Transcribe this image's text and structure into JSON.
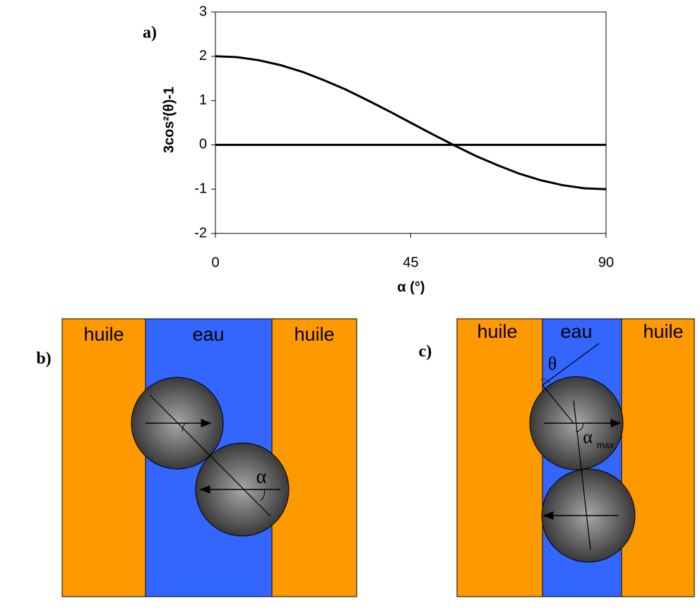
{
  "chart_data": {
    "type": "line",
    "title": "a)",
    "y_label": "3cos²(θ)-1",
    "x_label": "α (°)",
    "x": [
      0,
      5,
      10,
      15,
      20,
      25,
      30,
      35,
      40,
      45,
      50,
      55,
      60,
      65,
      70,
      75,
      80,
      85,
      90
    ],
    "values": [
      2,
      1.98,
      1.91,
      1.8,
      1.65,
      1.46,
      1.25,
      1.01,
      0.76,
      0.5,
      0.24,
      -0.01,
      -0.25,
      -0.46,
      -0.65,
      -0.8,
      -0.91,
      -0.98,
      -1
    ],
    "color": "#000000",
    "xlim": [
      0,
      90
    ],
    "xticks": [
      0,
      45,
      90
    ],
    "ylim": [
      -2,
      3
    ],
    "yticks": [
      -2,
      -1,
      0,
      1,
      2,
      3
    ],
    "grid": false
  },
  "diagrams": {
    "b": {
      "label": "b)",
      "regions": [
        "huile",
        "eau",
        "huile"
      ],
      "angle": "α"
    },
    "c": {
      "label": "c)",
      "regions": [
        "huile",
        "eau",
        "huile"
      ],
      "angle_theta": "θ",
      "angle": "α",
      "angle_sub": "max"
    }
  }
}
